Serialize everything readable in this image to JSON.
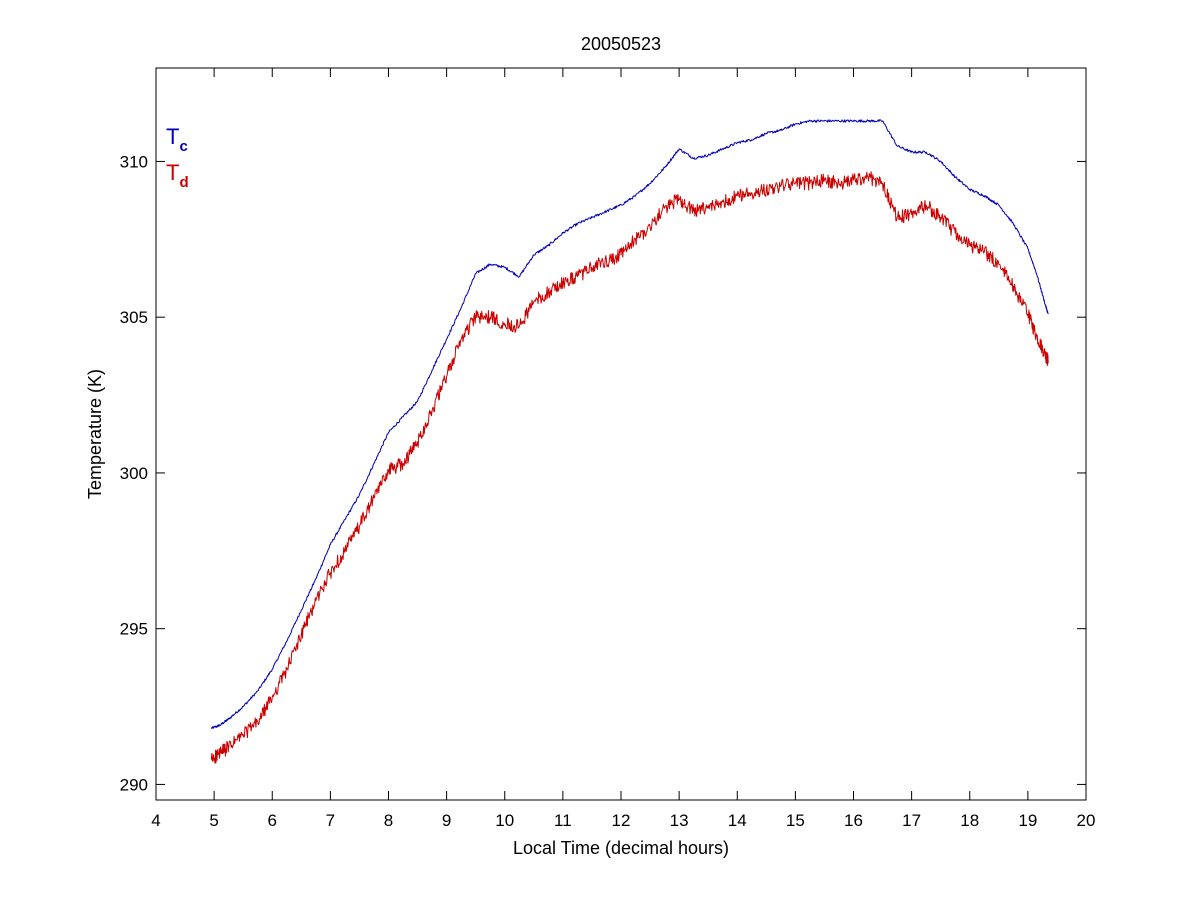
{
  "chart_data": {
    "type": "line",
    "title": "20050523",
    "xlabel": "Local Time (decimal hours)",
    "ylabel": "Temperature (K)",
    "xlim": [
      4,
      20
    ],
    "ylim": [
      289.5,
      313
    ],
    "xticks": [
      "4",
      "5",
      "6",
      "7",
      "8",
      "9",
      "10",
      "11",
      "12",
      "13",
      "14",
      "15",
      "16",
      "17",
      "18",
      "19",
      "20"
    ],
    "yticks": [
      "290",
      "295",
      "300",
      "305",
      "310"
    ],
    "grid": false,
    "legend_position": "top-left",
    "legend": [
      {
        "main": "T",
        "sub": "c",
        "color": "#0000b4"
      },
      {
        "main": "T",
        "sub": "d",
        "color": "#cc0000"
      }
    ],
    "series": [
      {
        "color": "#0000b4",
        "x": [
          4.95,
          5.1,
          5.25,
          5.5,
          5.75,
          6.0,
          6.25,
          6.5,
          6.75,
          7.0,
          7.25,
          7.5,
          7.75,
          8.0,
          8.25,
          8.5,
          8.75,
          9.0,
          9.25,
          9.5,
          9.75,
          10.0,
          10.25,
          10.5,
          10.75,
          11.0,
          11.25,
          11.5,
          11.75,
          12.0,
          12.25,
          12.5,
          12.75,
          13.0,
          13.25,
          13.5,
          13.75,
          14.0,
          14.25,
          14.5,
          14.75,
          15.0,
          15.25,
          15.5,
          15.75,
          16.0,
          16.25,
          16.5,
          16.75,
          17.0,
          17.25,
          17.5,
          17.75,
          18.0,
          18.25,
          18.5,
          18.75,
          19.0,
          19.15,
          19.3,
          19.35
        ],
        "y": [
          291.8,
          291.9,
          292.1,
          292.5,
          293.0,
          293.7,
          294.6,
          295.6,
          296.6,
          297.7,
          298.5,
          299.3,
          300.3,
          301.3,
          301.8,
          302.3,
          303.3,
          304.3,
          305.3,
          306.4,
          306.7,
          306.6,
          306.3,
          307.0,
          307.3,
          307.7,
          308.0,
          308.2,
          308.4,
          308.6,
          308.9,
          309.3,
          309.8,
          310.4,
          310.1,
          310.2,
          310.4,
          310.6,
          310.7,
          310.9,
          311.0,
          311.2,
          311.3,
          311.3,
          311.3,
          311.3,
          311.3,
          311.3,
          310.5,
          310.3,
          310.3,
          310.0,
          309.5,
          309.1,
          308.9,
          308.6,
          308.0,
          307.2,
          306.4,
          305.4,
          305.1
        ]
      },
      {
        "color": "#cc0000",
        "x": [
          4.95,
          5.1,
          5.25,
          5.5,
          5.75,
          6.0,
          6.25,
          6.5,
          6.75,
          7.0,
          7.25,
          7.5,
          7.75,
          8.0,
          8.25,
          8.5,
          8.75,
          9.0,
          9.25,
          9.5,
          9.75,
          10.0,
          10.25,
          10.5,
          10.75,
          11.0,
          11.25,
          11.5,
          11.75,
          12.0,
          12.25,
          12.5,
          12.75,
          13.0,
          13.25,
          13.5,
          13.75,
          14.0,
          14.25,
          14.5,
          14.75,
          15.0,
          15.25,
          15.5,
          15.75,
          16.0,
          16.25,
          16.5,
          16.75,
          17.0,
          17.25,
          17.5,
          17.75,
          18.0,
          18.25,
          18.5,
          18.75,
          19.0,
          19.15,
          19.3,
          19.35
        ],
        "y": [
          290.8,
          291.0,
          291.2,
          291.6,
          292.0,
          292.8,
          293.7,
          294.8,
          295.9,
          296.8,
          297.5,
          298.3,
          299.2,
          300.1,
          300.3,
          301.0,
          302.0,
          303.1,
          304.3,
          305.0,
          305.0,
          304.8,
          304.7,
          305.5,
          305.8,
          306.1,
          306.3,
          306.6,
          306.8,
          307.0,
          307.5,
          307.9,
          308.5,
          308.8,
          308.4,
          308.5,
          308.7,
          308.9,
          309.0,
          309.1,
          309.2,
          309.3,
          309.3,
          309.4,
          309.3,
          309.4,
          309.5,
          309.3,
          308.2,
          308.3,
          308.6,
          308.2,
          307.7,
          307.3,
          307.1,
          306.7,
          306.0,
          305.1,
          304.4,
          303.8,
          303.6
        ]
      }
    ]
  }
}
